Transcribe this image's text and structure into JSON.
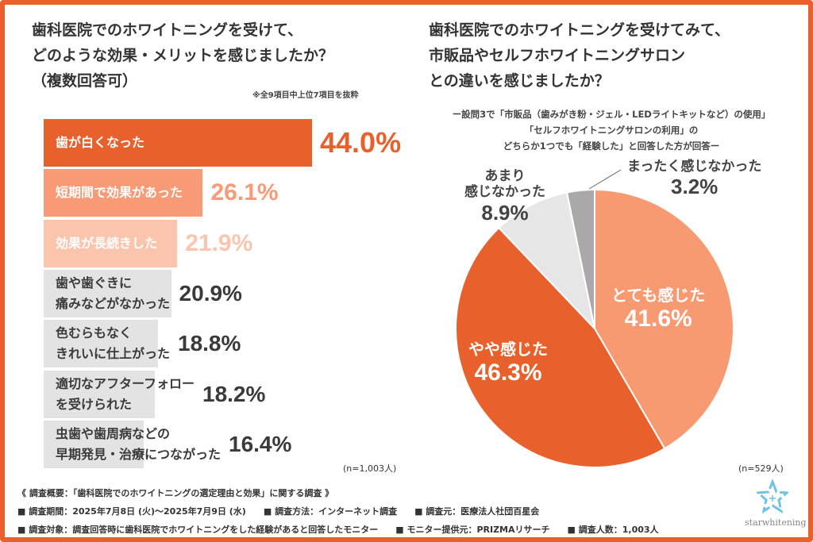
{
  "left": {
    "title": [
      "歯科医院でのホワイトニングを受けて、",
      "どのような効果・メリットを感じましたか？",
      "（複数回答可）"
    ],
    "note": "※全9項目中上位7項目を抜粋",
    "n": "(n=1,003人)"
  },
  "right": {
    "title": [
      "歯科医院でのホワイトニングを受けてみて、",
      "市販品やセルフホワイトニングサロン",
      "との違いを感じましたか？"
    ],
    "subtitle": [
      "ー設問3で「市販品（歯みがき粉・ジェル・LEDライトキットなど）の使用」",
      "「セルフホワイトニングサロンの利用」の",
      "どちらか1つでも「経験した」と回答した方が回答ー"
    ],
    "n": "(n=529人)"
  },
  "chart_data": [
    {
      "type": "bar",
      "orientation": "horizontal",
      "categories": [
        "歯が白くなった",
        "短期間で効果があった",
        "効果が長続きした",
        "歯や歯ぐきに\n痛みなどがなかった",
        "色むらもなく\nきれいに仕上がった",
        "適切なアフターフォロー\nを受けられた",
        "虫歯や歯周病などの\n早期発見・治療につながった"
      ],
      "values": [
        44.0,
        26.1,
        21.9,
        20.9,
        18.8,
        18.2,
        16.4
      ],
      "labels": [
        "44.0%",
        "26.1%",
        "21.9%",
        "20.9%",
        "18.8%",
        "18.2%",
        "16.4%"
      ],
      "colors": [
        "#e8602c",
        "#f79a75",
        "#fbc4ad",
        "#e3e3e3",
        "#e3e3e3",
        "#e3e3e3",
        "#e3e3e3"
      ],
      "value_colors": [
        "#e8602c",
        "#f79a75",
        "#fbc4ad",
        "#3a3a3a",
        "#3a3a3a",
        "#3a3a3a",
        "#3a3a3a"
      ],
      "unit": "%"
    },
    {
      "type": "pie",
      "start": "top",
      "direction": "clockwise",
      "slices": [
        {
          "label": "とても感じた",
          "value": 41.6,
          "display": "41.6%",
          "color": "#f79a72"
        },
        {
          "label": "やや感じた",
          "value": 46.3,
          "display": "46.3%",
          "color": "#e8602c"
        },
        {
          "label": "あまり\n感じなかった",
          "value": 8.9,
          "display": "8.9%",
          "color": "#e6e6e6"
        },
        {
          "label": "まったく感じなかった",
          "value": 3.2,
          "display": "3.2%",
          "color": "#a9a9a9"
        }
      ]
    }
  ],
  "footer": {
    "summary": "《 調査概要：「歯科医院でのホワイトニングの選定理由と効果」に関する調査 》",
    "period": "■ 調査期間：2025年7月8日 (火)〜2025年7月9日 (水)",
    "method": "■ 調査方法：インターネット調査",
    "source": "■ 調査元：医療法人社団百星会",
    "target": "■ 調査対象：調査回答時に歯科医院でホワイトニングをした経験があると回答したモニター",
    "provider": "■ モニター提供元：PRIZMAリサーチ",
    "count": "■ 調査人数：1,003人"
  },
  "logo": {
    "text": "starwhitening",
    "icon": "star-logo-icon"
  }
}
